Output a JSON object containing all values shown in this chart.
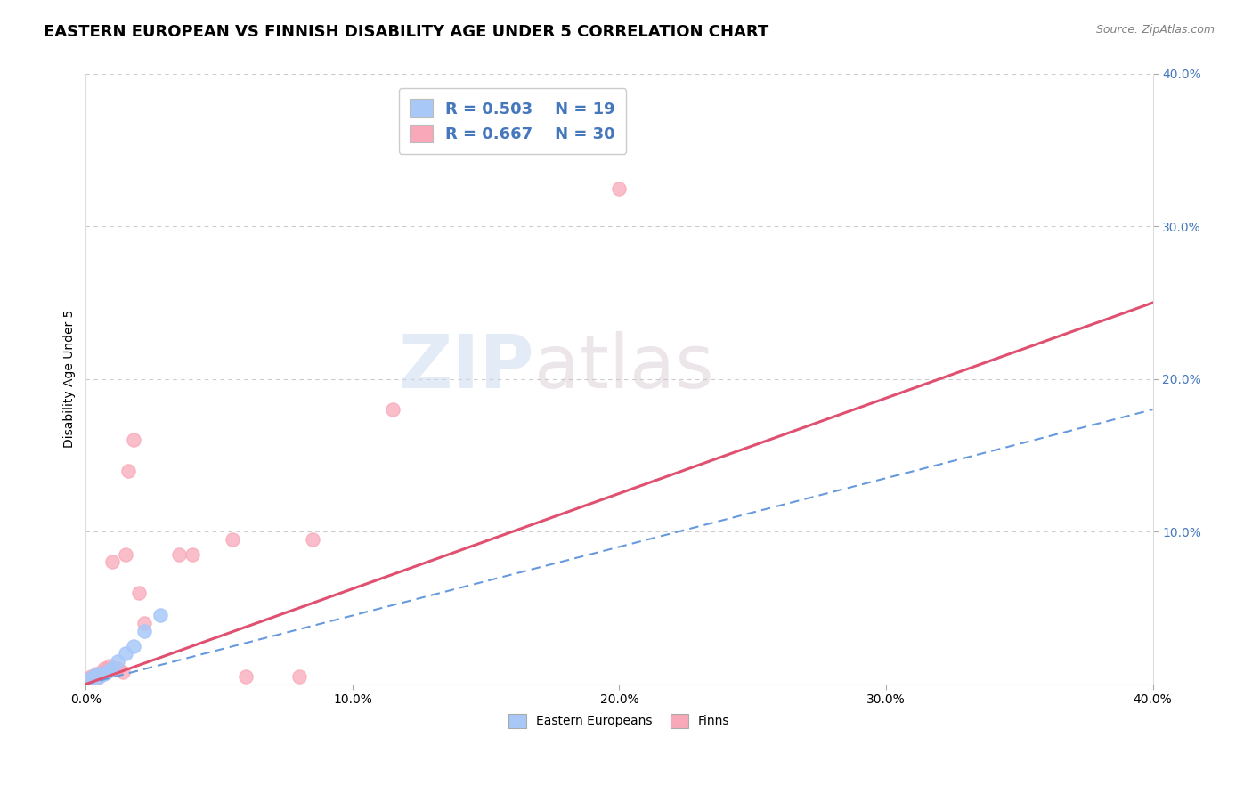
{
  "title": "EASTERN EUROPEAN VS FINNISH DISABILITY AGE UNDER 5 CORRELATION CHART",
  "source": "Source: ZipAtlas.com",
  "ylabel": "Disability Age Under 5",
  "xlim": [
    0.0,
    0.4
  ],
  "ylim": [
    0.0,
    0.4
  ],
  "xtick_vals": [
    0.0,
    0.1,
    0.2,
    0.3,
    0.4
  ],
  "ytick_vals_right": [
    0.1,
    0.2,
    0.3,
    0.4
  ],
  "background_color": "#ffffff",
  "grid_color": "#cccccc",
  "eastern_european_color": "#a8c8f8",
  "finn_color": "#f8a8b8",
  "eastern_european_line_color": "#6699dd",
  "finn_line_color": "#e05070",
  "title_fontsize": 13,
  "axis_label_fontsize": 10,
  "tick_fontsize": 10,
  "legend_text_color": "#4477bb",
  "tick_color": "#4477bb",
  "ee_line_slope": 0.45,
  "ee_line_intercept": 0.0,
  "fi_line_slope": 0.625,
  "fi_line_intercept": 0.0,
  "eastern_europeans_x": [
    0.001,
    0.002,
    0.002,
    0.003,
    0.003,
    0.004,
    0.004,
    0.005,
    0.005,
    0.006,
    0.007,
    0.008,
    0.009,
    0.01,
    0.012,
    0.015,
    0.018,
    0.022,
    0.028
  ],
  "eastern_europeans_y": [
    0.002,
    0.003,
    0.004,
    0.004,
    0.005,
    0.005,
    0.006,
    0.005,
    0.007,
    0.006,
    0.007,
    0.008,
    0.009,
    0.01,
    0.015,
    0.02,
    0.025,
    0.035,
    0.045
  ],
  "finns_x": [
    0.001,
    0.001,
    0.002,
    0.002,
    0.003,
    0.003,
    0.004,
    0.004,
    0.005,
    0.005,
    0.006,
    0.007,
    0.008,
    0.009,
    0.01,
    0.012,
    0.014,
    0.015,
    0.016,
    0.018,
    0.02,
    0.022,
    0.035,
    0.04,
    0.055,
    0.06,
    0.08,
    0.085,
    0.115,
    0.2
  ],
  "finns_y": [
    0.001,
    0.003,
    0.002,
    0.005,
    0.003,
    0.004,
    0.003,
    0.007,
    0.005,
    0.007,
    0.008,
    0.01,
    0.01,
    0.012,
    0.08,
    0.01,
    0.008,
    0.085,
    0.14,
    0.16,
    0.06,
    0.04,
    0.085,
    0.085,
    0.095,
    0.005,
    0.005,
    0.095,
    0.18,
    0.325
  ]
}
